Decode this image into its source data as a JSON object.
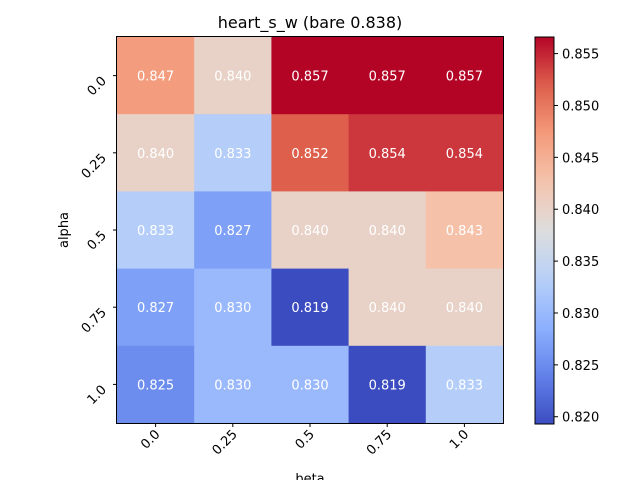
{
  "chart_data": {
    "type": "heatmap",
    "title": "heart_s_w (bare 0.838)",
    "xlabel": "beta",
    "ylabel": "alpha",
    "x_categories": [
      "0.0",
      "0.25",
      "0.5",
      "0.75",
      "1.0"
    ],
    "y_categories": [
      "0.0",
      "0.25",
      "0.5",
      "0.75",
      "1.0"
    ],
    "values": [
      [
        0.847,
        0.84,
        0.857,
        0.857,
        0.857
      ],
      [
        0.84,
        0.833,
        0.852,
        0.854,
        0.854
      ],
      [
        0.833,
        0.827,
        0.84,
        0.84,
        0.843
      ],
      [
        0.827,
        0.83,
        0.819,
        0.84,
        0.84
      ],
      [
        0.825,
        0.83,
        0.83,
        0.819,
        0.833
      ]
    ],
    "value_labels": [
      [
        "0.847",
        "0.840",
        "0.857",
        "0.857",
        "0.857"
      ],
      [
        "0.840",
        "0.833",
        "0.852",
        "0.854",
        "0.854"
      ],
      [
        "0.833",
        "0.827",
        "0.840",
        "0.840",
        "0.843"
      ],
      [
        "0.827",
        "0.830",
        "0.819",
        "0.840",
        "0.840"
      ],
      [
        "0.825",
        "0.830",
        "0.830",
        "0.819",
        "0.833"
      ]
    ],
    "colormap": "coolwarm",
    "vmin": 0.8193,
    "vmax": 0.8566,
    "colorbar_ticks": [
      "0.820",
      "0.825",
      "0.830",
      "0.835",
      "0.840",
      "0.845",
      "0.850",
      "0.855"
    ],
    "colorbar_tick_values": [
      0.82,
      0.825,
      0.83,
      0.835,
      0.84,
      0.845,
      0.85,
      0.855
    ],
    "tick_rotation_deg": 45,
    "grid": false,
    "legend": "colorbar-right"
  }
}
